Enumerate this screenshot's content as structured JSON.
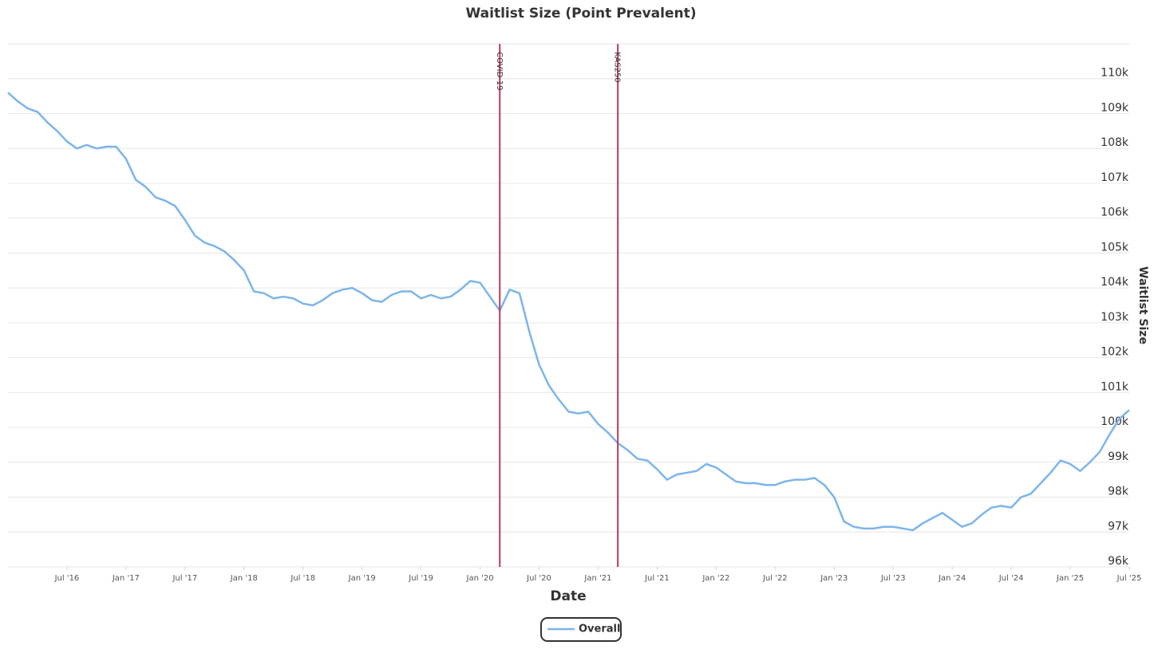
{
  "chart_data": {
    "type": "line",
    "title": "Waitlist Size (Point Prevalent)",
    "x_label": "Date",
    "y_label": "Waitlist Size",
    "x": [
      "2016-01",
      "2016-02",
      "2016-03",
      "2016-04",
      "2016-05",
      "2016-06",
      "2016-07",
      "2016-08",
      "2016-09",
      "2016-10",
      "2016-11",
      "2016-12",
      "2017-01",
      "2017-02",
      "2017-03",
      "2017-04",
      "2017-05",
      "2017-06",
      "2017-07",
      "2017-08",
      "2017-09",
      "2017-10",
      "2017-11",
      "2017-12",
      "2018-01",
      "2018-02",
      "2018-03",
      "2018-04",
      "2018-05",
      "2018-06",
      "2018-07",
      "2018-08",
      "2018-09",
      "2018-10",
      "2018-11",
      "2018-12",
      "2019-01",
      "2019-02",
      "2019-03",
      "2019-04",
      "2019-05",
      "2019-06",
      "2019-07",
      "2019-08",
      "2019-09",
      "2019-10",
      "2019-11",
      "2019-12",
      "2020-01",
      "2020-02",
      "2020-03",
      "2020-04",
      "2020-05",
      "2020-06",
      "2020-07",
      "2020-08",
      "2020-09",
      "2020-10",
      "2020-11",
      "2020-12",
      "2021-01",
      "2021-02",
      "2021-03",
      "2021-04",
      "2021-05",
      "2021-06",
      "2021-07",
      "2021-08",
      "2021-09",
      "2021-10",
      "2021-11",
      "2021-12",
      "2022-01",
      "2022-02",
      "2022-03",
      "2022-04",
      "2022-05",
      "2022-06",
      "2022-07",
      "2022-08",
      "2022-09",
      "2022-10",
      "2022-11",
      "2022-12",
      "2023-01",
      "2023-02",
      "2023-03",
      "2023-04",
      "2023-05",
      "2023-06",
      "2023-07",
      "2023-08",
      "2023-09",
      "2023-10",
      "2023-11",
      "2023-12",
      "2024-01",
      "2024-02",
      "2024-03",
      "2024-04",
      "2024-05",
      "2024-06",
      "2024-07",
      "2024-08",
      "2024-09",
      "2024-10",
      "2024-11",
      "2024-12",
      "2025-01",
      "2025-02",
      "2025-03",
      "2025-04",
      "2025-05",
      "2025-06",
      "2025-07"
    ],
    "series": [
      {
        "name": "Overall",
        "color": "#7cb5ec",
        "values": [
          109600,
          109350,
          109150,
          109050,
          108750,
          108500,
          108200,
          108000,
          108100,
          108000,
          108050,
          108050,
          107700,
          107100,
          106900,
          106600,
          106500,
          106350,
          105950,
          105500,
          105300,
          105200,
          105050,
          104800,
          104500,
          103900,
          103850,
          103700,
          103750,
          103700,
          103550,
          103500,
          103650,
          103850,
          103950,
          104000,
          103850,
          103650,
          103600,
          103800,
          103900,
          103900,
          103700,
          103800,
          103700,
          103750,
          103950,
          104200,
          104150,
          103750,
          103350,
          103950,
          103850,
          102750,
          101800,
          101200,
          100800,
          100450,
          100400,
          100450,
          100100,
          99850,
          99550,
          99350,
          99100,
          99050,
          98800,
          98500,
          98650,
          98700,
          98750,
          98950,
          98850,
          98650,
          98450,
          98400,
          98400,
          98350,
          98350,
          98450,
          98500,
          98500,
          98550,
          98350,
          98000,
          97300,
          97150,
          97100,
          97100,
          97150,
          97150,
          97100,
          97050,
          97250,
          97400,
          97550,
          97350,
          97150,
          97250,
          97500,
          97700,
          97750,
          97700,
          98000,
          98100,
          98400,
          98700,
          99050,
          98950,
          98750,
          99000,
          99300,
          99800,
          100250,
          100500
        ]
      }
    ],
    "xlim": [
      "2016-01",
      "2025-07"
    ],
    "xticks": [
      {
        "value": "2016-07",
        "label": "Jul '16"
      },
      {
        "value": "2017-01",
        "label": "Jan '17"
      },
      {
        "value": "2017-07",
        "label": "Jul '17"
      },
      {
        "value": "2018-01",
        "label": "Jan '18"
      },
      {
        "value": "2018-07",
        "label": "Jul '18"
      },
      {
        "value": "2019-01",
        "label": "Jan '19"
      },
      {
        "value": "2019-07",
        "label": "Jul '19"
      },
      {
        "value": "2020-01",
        "label": "Jan '20"
      },
      {
        "value": "2020-07",
        "label": "Jul '20"
      },
      {
        "value": "2021-01",
        "label": "Jan '21"
      },
      {
        "value": "2021-07",
        "label": "Jul '21"
      },
      {
        "value": "2022-01",
        "label": "Jan '22"
      },
      {
        "value": "2022-07",
        "label": "Jul '22"
      },
      {
        "value": "2023-01",
        "label": "Jan '23"
      },
      {
        "value": "2023-07",
        "label": "Jul '23"
      },
      {
        "value": "2024-01",
        "label": "Jan '24"
      },
      {
        "value": "2024-07",
        "label": "Jul '24"
      },
      {
        "value": "2025-01",
        "label": "Jan '25"
      },
      {
        "value": "2025-07",
        "label": "Jul '25"
      }
    ],
    "ylim": [
      96000,
      111000
    ],
    "yticks": [
      {
        "value": 96000,
        "label": "96k"
      },
      {
        "value": 97000,
        "label": "97k"
      },
      {
        "value": 98000,
        "label": "98k"
      },
      {
        "value": 99000,
        "label": "99k"
      },
      {
        "value": 100000,
        "label": "100k"
      },
      {
        "value": 101000,
        "label": "101k"
      },
      {
        "value": 102000,
        "label": "102k"
      },
      {
        "value": 103000,
        "label": "103k"
      },
      {
        "value": 104000,
        "label": "104k"
      },
      {
        "value": 105000,
        "label": "105k"
      },
      {
        "value": 106000,
        "label": "106k"
      },
      {
        "value": 107000,
        "label": "107k"
      },
      {
        "value": 108000,
        "label": "108k"
      },
      {
        "value": 109000,
        "label": "109k"
      },
      {
        "value": 110000,
        "label": "110k"
      }
    ],
    "grid": true,
    "legend": "bottom",
    "plot_lines": [
      {
        "x": "2020-03",
        "label": "COVID-19",
        "color": "#c0395a"
      },
      {
        "x": "2021-03",
        "label": "KAS250",
        "color": "#c0395a"
      }
    ]
  }
}
